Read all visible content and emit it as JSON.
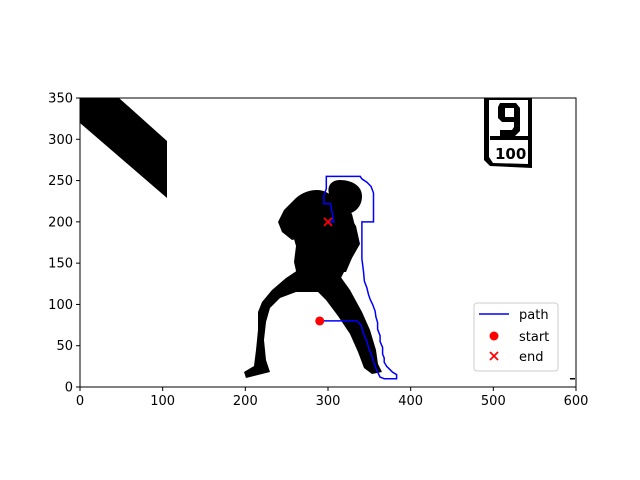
{
  "chart_data": {
    "type": "line",
    "title": "",
    "xlabel": "",
    "ylabel": "",
    "xlim": [
      0,
      600
    ],
    "ylim": [
      0,
      350
    ],
    "x_ticks": [
      0,
      100,
      200,
      300,
      400,
      500,
      600
    ],
    "y_ticks": [
      0,
      50,
      100,
      150,
      200,
      250,
      300,
      350
    ],
    "background_image": "black silhouette of a dancing figure, a diagonal black stripe top-left, and a '9 / 100' sign top-right",
    "series": [
      {
        "name": "path",
        "kind": "line",
        "color": "#0000ff",
        "points": [
          [
            290,
            80
          ],
          [
            335,
            80
          ],
          [
            340,
            75
          ],
          [
            343,
            65
          ],
          [
            347,
            55
          ],
          [
            350,
            45
          ],
          [
            354,
            35
          ],
          [
            357,
            25
          ],
          [
            360,
            18
          ],
          [
            363,
            12
          ],
          [
            368,
            10
          ],
          [
            383,
            10
          ],
          [
            383,
            15
          ],
          [
            378,
            18
          ],
          [
            374,
            22
          ],
          [
            371,
            25
          ],
          [
            368,
            30
          ],
          [
            368,
            35
          ],
          [
            366,
            40
          ],
          [
            366,
            48
          ],
          [
            363,
            55
          ],
          [
            363,
            62
          ],
          [
            360,
            70
          ],
          [
            360,
            78
          ],
          [
            358,
            85
          ],
          [
            357,
            92
          ],
          [
            354,
            100
          ],
          [
            351,
            106
          ],
          [
            349,
            112
          ],
          [
            347,
            120
          ],
          [
            344,
            128
          ],
          [
            343,
            140
          ],
          [
            341,
            155
          ],
          [
            341,
            170
          ],
          [
            341,
            185
          ],
          [
            341,
            200
          ],
          [
            355,
            200
          ],
          [
            355,
            235
          ],
          [
            352,
            243
          ],
          [
            347,
            248
          ],
          [
            341,
            252
          ],
          [
            339,
            255
          ],
          [
            298,
            255
          ],
          [
            298,
            240
          ],
          [
            295,
            232
          ],
          [
            295,
            222
          ],
          [
            303,
            222
          ],
          [
            307,
            200
          ],
          [
            300,
            200
          ]
        ]
      },
      {
        "name": "start",
        "kind": "point",
        "marker": "circle",
        "color": "#ff0000",
        "x": 290,
        "y": 80
      },
      {
        "name": "end",
        "kind": "point",
        "marker": "x",
        "color": "#ff0000",
        "x": 300,
        "y": 200
      }
    ],
    "legend": {
      "placement": "lower right",
      "entries": [
        "path",
        "start",
        "end"
      ]
    },
    "grid": false
  }
}
